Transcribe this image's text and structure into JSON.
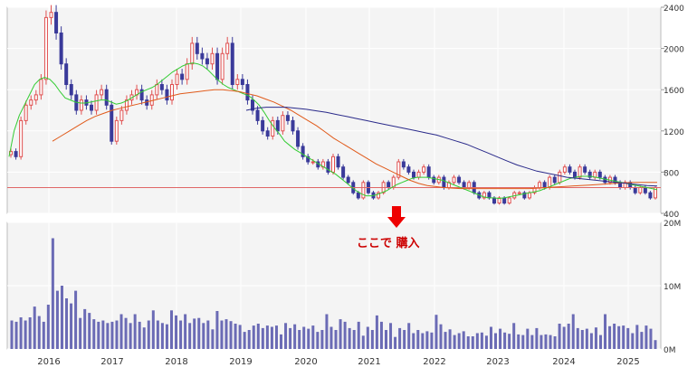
{
  "chart_data": [
    {
      "type": "candlestick",
      "x_axis_labels": [
        "2016",
        "2017",
        "2018",
        "2019",
        "2020",
        "2021",
        "2022",
        "2023",
        "2024",
        "2025"
      ],
      "y_ticks": [
        "400",
        "800",
        "1200",
        "1600",
        "2000",
        "2400"
      ],
      "ylim": [
        400,
        2400
      ],
      "reference_line": {
        "value": 650,
        "color": "#e06666"
      },
      "annotation": "ここで 購入",
      "colors": {
        "up": "#e05050",
        "down": "#3a3a9a",
        "ma_short": "#33cc33",
        "ma_mid": "#e05a1a",
        "ma_long": "#2a2a8a"
      },
      "grid": true,
      "y_axis_position": "right",
      "series": [
        {
          "values": [
            1000,
            950,
            1300,
            1450,
            1500,
            1550,
            1700,
            2300,
            2350,
            2150,
            1850,
            1650,
            1550,
            1400,
            1500,
            1450,
            1400,
            1550,
            1600,
            1450,
            1100,
            1300,
            1400,
            1500,
            1550,
            1600,
            1500,
            1450,
            1550,
            1650,
            1600,
            1500,
            1650,
            1750,
            1700,
            1850,
            2050,
            1950,
            1900,
            1850,
            1950,
            1700,
            1950,
            2050,
            1650,
            1700,
            1650,
            1500,
            1400,
            1300,
            1200,
            1150,
            1300,
            1200,
            1350,
            1300,
            1200,
            1050,
            950,
            900,
            900,
            850,
            900,
            800,
            950,
            850,
            750,
            700,
            600,
            550,
            700,
            600,
            550,
            600,
            700,
            650,
            750,
            900,
            850,
            800,
            750,
            800,
            850,
            750,
            700,
            750,
            650,
            700,
            750,
            700,
            650,
            700,
            600,
            550,
            600,
            550,
            500,
            550,
            500,
            550,
            600,
            600,
            550,
            600,
            650,
            700,
            650,
            750,
            700,
            800,
            850,
            800,
            750,
            850,
            800,
            750,
            800,
            750,
            700,
            750,
            700,
            650,
            700,
            650,
            600,
            650,
            600,
            550,
            650
          ]
        },
        {
          "values": [
            950,
            1200,
            1350,
            1450,
            1550,
            1650,
            1700,
            1720,
            1700,
            1650,
            1580,
            1520,
            1500,
            1480,
            1470,
            1470,
            1480,
            1490,
            1500,
            1500,
            1480,
            1460,
            1470,
            1490,
            1520,
            1550,
            1580,
            1600,
            1620,
            1650,
            1690,
            1730,
            1770,
            1800,
            1830,
            1850,
            1860,
            1850,
            1830,
            1790,
            1740,
            1690,
            1650,
            1620,
            1600,
            1580,
            1560,
            1540,
            1500,
            1450,
            1380,
            1300,
            1230,
            1170,
            1100,
            1060,
            1020,
            990,
            960,
            930,
            900,
            870,
            840,
            810,
            780,
            740,
            700,
            660,
            620,
            590,
            570,
            570,
            580,
            600,
            620,
            650,
            680,
            700,
            720,
            740,
            750,
            750,
            750,
            740,
            730,
            720,
            700,
            680,
            660,
            640,
            620,
            600,
            580,
            560,
            550,
            550,
            545,
            550,
            560,
            570,
            580,
            590,
            600,
            610,
            620,
            640,
            660,
            680,
            700,
            720,
            740,
            750,
            760,
            760,
            760,
            750,
            740,
            730,
            720,
            710,
            700,
            690,
            680,
            670,
            660,
            650,
            640,
            630
          ]
        },
        {
          "values": [
            1100,
            1150,
            1200,
            1250,
            1300,
            1340,
            1370,
            1400,
            1420,
            1440,
            1460,
            1480,
            1500,
            1520,
            1540,
            1560,
            1570,
            1580,
            1590,
            1600,
            1600,
            1590,
            1580,
            1560,
            1540,
            1510,
            1480,
            1440,
            1400,
            1350,
            1300,
            1250,
            1190,
            1130,
            1080,
            1030,
            980,
            930,
            880,
            840,
            800,
            760,
            720,
            690,
            670,
            660,
            650,
            645,
            640,
            640,
            640,
            640,
            640,
            640,
            640,
            640,
            640,
            645,
            650,
            655,
            660,
            665,
            670,
            675,
            680,
            685,
            690,
            695,
            700,
            700,
            700,
            700
          ]
        },
        {
          "values": [
            1400,
            1420,
            1430,
            1430,
            1430,
            1420,
            1410,
            1395,
            1380,
            1360,
            1340,
            1320,
            1300,
            1280,
            1260,
            1240,
            1220,
            1200,
            1180,
            1160,
            1130,
            1100,
            1070,
            1030,
            990,
            950,
            910,
            870,
            840,
            810,
            790,
            770,
            750,
            740,
            730,
            720,
            710,
            700,
            690,
            680,
            670,
            665
          ]
        }
      ],
      "volume": {
        "y_ticks": [
          "0M",
          "10M",
          "20M"
        ],
        "ylim": [
          0,
          20
        ],
        "color": "#6b6bb5",
        "values": [
          4.5,
          4.3,
          5.0,
          4.5,
          5.0,
          6.7,
          5.2,
          4.3,
          7.0,
          17.5,
          9.2,
          10.0,
          8.0,
          7.2,
          9.2,
          4.9,
          6.3,
          5.7,
          4.7,
          4.3,
          4.5,
          4.1,
          4.3,
          4.5,
          5.5,
          4.9,
          4.1,
          5.5,
          4.3,
          3.4,
          4.5,
          6.1,
          4.5,
          4.1,
          3.9,
          6.1,
          5.3,
          4.5,
          5.5,
          4.1,
          4.8,
          4.9,
          4.1,
          4.5,
          3.1,
          6.0,
          4.5,
          4.7,
          4.4,
          4.0,
          3.8,
          2.7,
          3.0,
          3.7,
          4.0,
          3.3,
          3.7,
          3.5,
          3.7,
          2.3,
          4.1,
          3.3,
          3.9,
          3.0,
          3.5,
          3.2,
          3.7,
          2.7,
          3.0,
          5.5,
          3.5,
          3.0,
          4.7,
          4.3,
          3.3,
          3.0,
          4.3,
          2.1,
          3.5,
          3.0,
          5.3,
          4.3,
          3.0,
          4.1,
          1.9,
          3.3,
          3.0,
          4.1,
          2.5,
          3.0,
          2.5,
          2.8,
          2.6,
          5.4,
          3.9,
          2.7,
          3.1,
          2.2,
          2.5,
          2.8,
          2.0,
          2.0,
          2.5,
          2.6,
          2.1,
          3.5,
          2.5,
          3.2,
          2.6,
          2.4,
          4.1,
          2.3,
          2.2,
          3.2,
          2.2,
          3.3,
          2.2,
          2.3,
          2.2,
          2.0,
          4.0,
          3.5,
          4.0,
          5.5,
          3.3,
          3.0,
          3.2,
          2.5,
          3.4,
          2.2,
          5.5,
          3.6,
          4.0,
          3.6,
          3.7,
          3.3,
          2.5,
          3.8,
          2.7,
          3.7,
          3.2,
          1.4
        ]
      }
    }
  ]
}
